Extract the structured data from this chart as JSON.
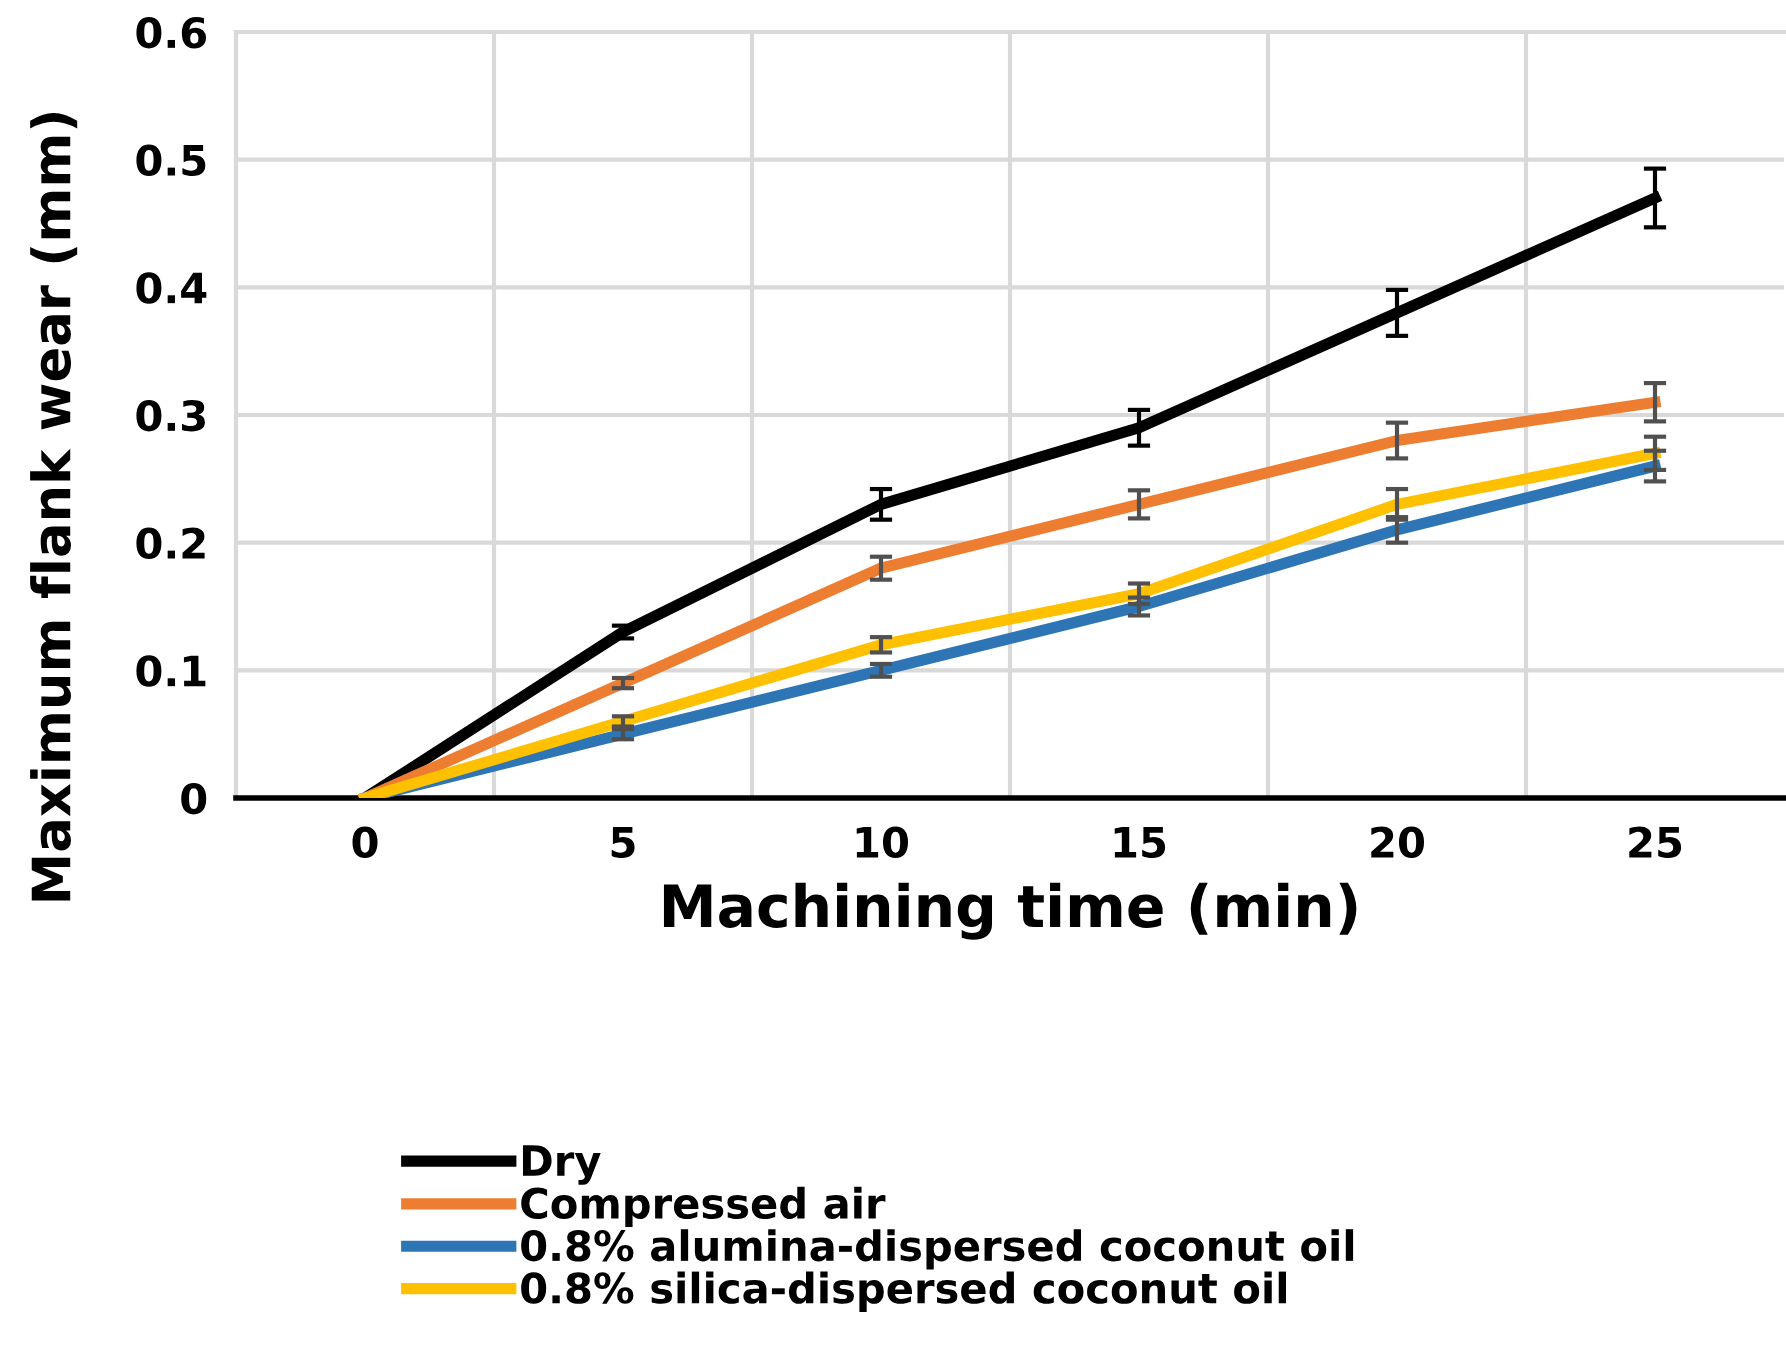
{
  "chart_data": {
    "type": "line",
    "xlabel": "Machining time (min)",
    "ylabel": "Maximum flank wear (mm)",
    "categories": [
      "0",
      "5",
      "10",
      "15",
      "20",
      "25"
    ],
    "ylim": [
      0,
      0.6
    ],
    "yticks": [
      0,
      0.1,
      0.2,
      0.3,
      0.4,
      0.5,
      0.6
    ],
    "grid": true,
    "legend": "bottom",
    "marker": "none",
    "line_style": "solid",
    "series": [
      {
        "name": "Dry",
        "color": "#000000",
        "values": [
          0,
          0.13,
          0.23,
          0.29,
          0.38,
          0.47
        ],
        "errors": [
          null,
          0.005,
          0.012,
          0.014,
          0.018,
          0.023
        ]
      },
      {
        "name": "Compressed air",
        "color": "#ed7d31",
        "values": [
          0,
          0.09,
          0.18,
          0.23,
          0.28,
          0.31
        ],
        "errors": [
          null,
          0.004,
          0.009,
          0.011,
          0.014,
          0.015
        ]
      },
      {
        "name": "0.8% alumina-dispersed coconut oil",
        "color": "#2e75b6",
        "values": [
          0,
          0.05,
          0.1,
          0.15,
          0.21,
          0.26
        ],
        "errors": [
          null,
          0.004,
          0.005,
          0.007,
          0.01,
          0.012
        ]
      },
      {
        "name": "0.8% silica-dispersed coconut oil",
        "color": "#ffc000",
        "values": [
          0,
          0.06,
          0.12,
          0.16,
          0.23,
          0.27
        ],
        "errors": [
          null,
          0.004,
          0.006,
          0.008,
          0.012,
          0.013
        ]
      }
    ]
  }
}
